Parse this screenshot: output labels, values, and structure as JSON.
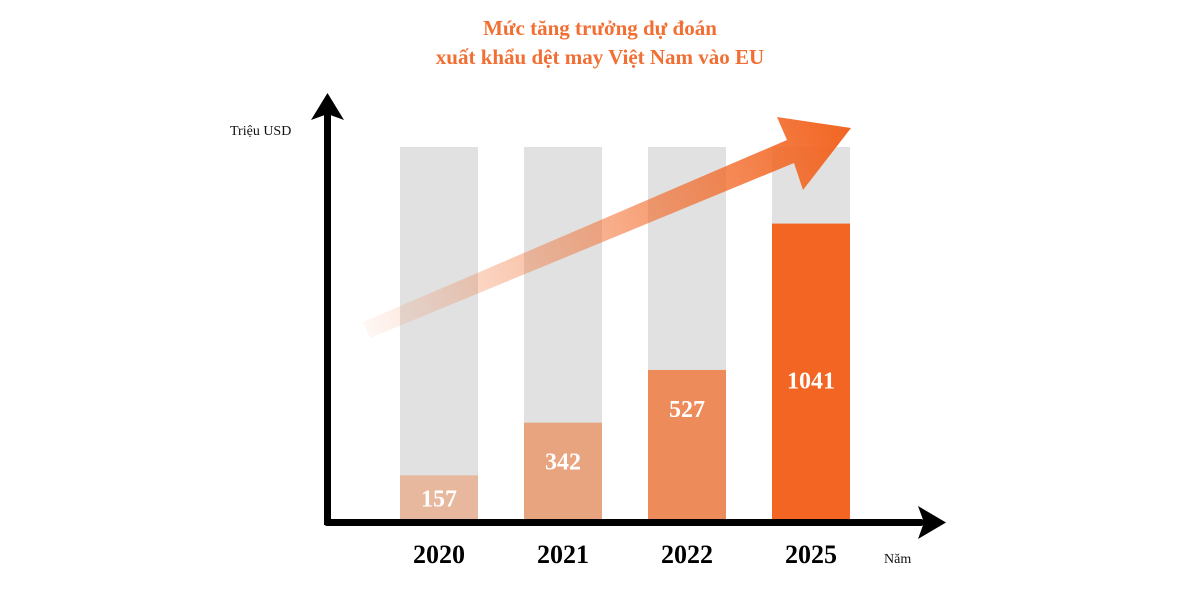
{
  "chart_data": {
    "type": "bar",
    "title": "Mức tăng trưởng dự đoán",
    "subtitle": "xuất khẩu dệt may Việt Nam vào EU",
    "ylabel": "Triệu USD",
    "xlabel": "Năm",
    "categories": [
      "2020",
      "2021",
      "2022",
      "2025"
    ],
    "values": [
      157,
      342,
      527,
      1041
    ],
    "ylim": [
      0,
      1310
    ],
    "grid": false,
    "colors": {
      "bars": [
        "#e8b89e",
        "#e8a47f",
        "#ed8b5b",
        "#f26522"
      ],
      "background_bar": "#e1e1e1",
      "title": "#f26f34",
      "axis": "#000000"
    }
  }
}
